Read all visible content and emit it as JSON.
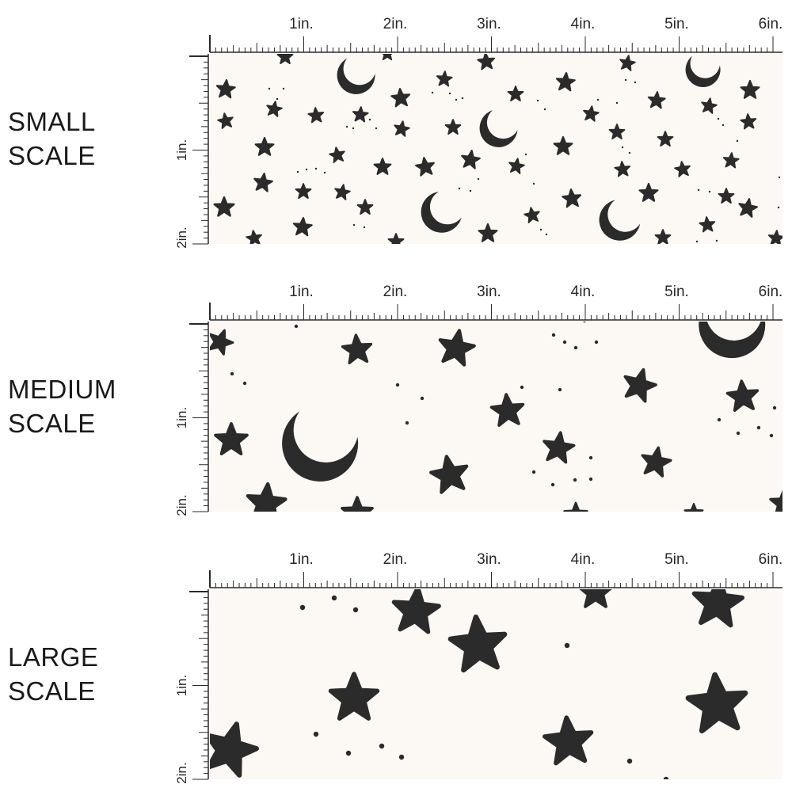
{
  "colors": {
    "background": "#ffffff",
    "fabric": "#fcf9f4",
    "print": "#2b2b2b",
    "ruler": "#2a2a2a"
  },
  "icons": [
    "star-icon",
    "crescent-moon-icon",
    "dot"
  ],
  "ruler": {
    "horizontal_labels": [
      "1in.",
      "2in.",
      "3in.",
      "4in.",
      "5in.",
      "6in."
    ],
    "vertical_labels": [
      "1in.",
      "2in."
    ]
  },
  "panels": [
    {
      "label_line1": "SMALL",
      "label_line2": "SCALE"
    },
    {
      "label_line1": "MEDIUM",
      "label_line2": "SCALE"
    },
    {
      "label_line1": "LARGE",
      "label_line2": "SCALE"
    }
  ]
}
